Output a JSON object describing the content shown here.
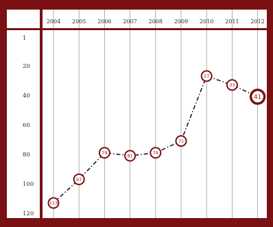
{
  "colors": {
    "frame": "#7a1114",
    "grid": "#9a9a9a",
    "line": "#1a1a1a",
    "marker_fill": "#ffffff",
    "marker_stroke": "#7a1114"
  },
  "chart_data": {
    "type": "line",
    "title": "",
    "xlabel": "",
    "ylabel": "",
    "categories": [
      "2004",
      "2005",
      "2006",
      "2007",
      "2008",
      "2009",
      "2010",
      "2011",
      "2012"
    ],
    "y_ticks": [
      "1",
      "20",
      "40",
      "60",
      "80",
      "100",
      "120"
    ],
    "ylim": [
      1,
      120
    ],
    "y_inverted": true,
    "grid": "vertical",
    "series": [
      {
        "values": [
          113,
          97,
          79,
          81,
          79,
          71,
          27,
          33,
          41
        ],
        "labels": [
          "113",
          "97",
          "79",
          "81",
          "79",
          "71",
          "27",
          "33",
          "41"
        ],
        "highlight_last": true,
        "line_style": "dash-dot"
      }
    ]
  }
}
